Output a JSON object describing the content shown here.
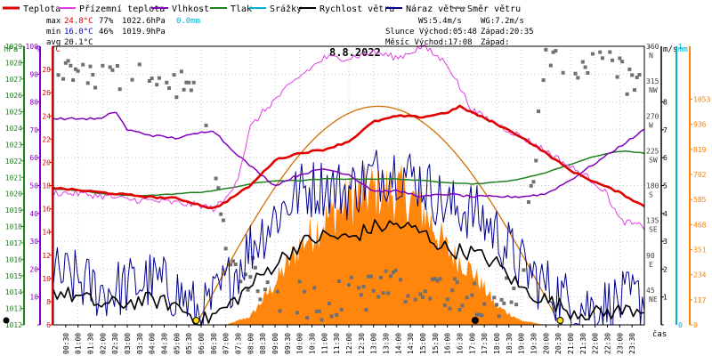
{
  "legend": {
    "items": [
      {
        "label": "Teplota",
        "color": "#e00000"
      },
      {
        "label": "Přízemní teplota",
        "color": "#e040e0"
      },
      {
        "label": "Vlhkost",
        "color": "#8000c0"
      },
      {
        "label": "Tlak",
        "color": "#208020"
      },
      {
        "label": "Srážky",
        "color": "#00b0d0"
      },
      {
        "label": "Rychlost větru",
        "color": "#000000"
      },
      {
        "label": "Náraz větru",
        "color": "#000090"
      },
      {
        "label": "Směr větru",
        "color": "#808080"
      }
    ]
  },
  "stats": {
    "max_label": "max",
    "max_temp": "24.8°C",
    "max_hum": "77%",
    "max_press": "1022.6hPa",
    "max_rain": "0.0mm",
    "min_label": "min",
    "min_temp": "16.0°C",
    "min_hum": "46%",
    "min_press": "1019.9hPa",
    "avg_label": "avg",
    "avg_temp": "20.1°C"
  },
  "wind_info": {
    "ws": "WS:5.4m/s",
    "wg": "WG:7.2m/s",
    "sun": "Slunce Východ:05:48",
    "sun_set": "Západ:20:35",
    "moon": "Měsíc Východ:17:08",
    "moon_set": "Západ:"
  },
  "colors": {
    "temp": "#e00000",
    "ground": "#e040e0",
    "hum": "#8000c0",
    "press": "#208020",
    "rain": "#00b0d0",
    "wind": "#000000",
    "gust": "#000090",
    "dir": "#707070",
    "solar": "#ff8000",
    "solar_max": "#d07000"
  },
  "chart_data": {
    "type": "line",
    "title": "8.8.2022",
    "xlabel": "čas",
    "x_ticks": [
      "00:30",
      "01:00",
      "01:30",
      "02:00",
      "02:30",
      "03:00",
      "03:30",
      "04:00",
      "04:30",
      "05:00",
      "05:30",
      "06:00",
      "06:30",
      "07:00",
      "07:30",
      "08:00",
      "08:30",
      "09:00",
      "09:30",
      "10:00",
      "10:30",
      "11:00",
      "11:30",
      "12:00",
      "12:30",
      "13:00",
      "13:30",
      "14:00",
      "14:30",
      "15:00",
      "15:30",
      "16:00",
      "16:30",
      "17:00",
      "17:30",
      "18:00",
      "18:30",
      "19:00",
      "19:30",
      "20:00",
      "20:30",
      "21:00",
      "21:30",
      "22:00",
      "22:30",
      "23:00",
      "23:30"
    ],
    "axes": {
      "pressure": {
        "unit": "hPa",
        "min": 1012,
        "max": 1029,
        "ticks": [
          1012,
          1013,
          1014,
          1015,
          1016,
          1017,
          1018,
          1019,
          1020,
          1021,
          1022,
          1023,
          1024,
          1025,
          1026,
          1027,
          1028,
          1029
        ]
      },
      "humidity": {
        "unit": "%",
        "min": 0,
        "max": 100,
        "ticks": [
          0,
          10,
          20,
          30,
          40,
          50,
          60,
          70,
          80,
          90,
          100
        ]
      },
      "temperature": {
        "unit": "°C",
        "min": 6,
        "max": 30,
        "ticks": [
          6,
          8,
          10,
          12,
          14,
          16,
          18,
          20,
          22,
          24,
          26,
          28
        ]
      },
      "wind_dir": {
        "unit": "°",
        "min": 0,
        "max": 360,
        "ticks": [
          {
            "v": 360,
            "l": "N"
          },
          {
            "v": 315,
            "l": "NW"
          },
          {
            "v": 270,
            "l": "W"
          },
          {
            "v": 225,
            "l": "SW"
          },
          {
            "v": 180,
            "l": "S"
          },
          {
            "v": 135,
            "l": "SE"
          },
          {
            "v": 90,
            "l": "E"
          },
          {
            "v": 45,
            "l": "NE"
          },
          {
            "v": 0,
            "l": ""
          }
        ]
      },
      "wind_speed": {
        "unit": "m/s",
        "min": 0,
        "max": 10,
        "ticks": [
          0,
          1,
          2,
          3,
          4,
          5,
          6,
          7,
          8
        ]
      },
      "rain": {
        "unit": "mm",
        "min": 0,
        "max": 1,
        "ticks": [
          0,
          1
        ]
      },
      "solar": {
        "unit": "",
        "min": 0,
        "max": 1300,
        "ticks": [
          0,
          117,
          234,
          351,
          468,
          585,
          702,
          819,
          936,
          1053
        ]
      }
    },
    "series": [
      {
        "name": "Teplota",
        "axis": "temperature",
        "hours": [
          0,
          1,
          2,
          3,
          4,
          5,
          6,
          6.5,
          7,
          8,
          9,
          10,
          11,
          12,
          13,
          14,
          15,
          16,
          16.5,
          17,
          18,
          19,
          20,
          21,
          22,
          23,
          24
        ],
        "values": [
          17.8,
          17.6,
          17.4,
          17.2,
          17.0,
          16.9,
          16.3,
          16.0,
          16.6,
          18.0,
          20.2,
          20.8,
          21.1,
          21.8,
          23.5,
          24.0,
          23.9,
          24.3,
          24.8,
          24.3,
          23.3,
          22.2,
          20.8,
          19.3,
          18.3,
          17.4,
          16.2
        ]
      },
      {
        "name": "Přízemní teplota",
        "axis": "temperature",
        "hours": [
          0,
          1,
          2,
          3,
          4,
          5,
          6,
          6.5,
          7,
          7.5,
          8,
          8.5,
          9,
          10,
          11,
          12,
          13,
          14,
          15,
          16,
          16.5,
          17,
          18,
          19,
          20,
          21,
          22,
          22.5,
          23,
          24
        ],
        "values": [
          17.4,
          17.3,
          17.1,
          16.8,
          16.7,
          16.5,
          16.3,
          16.0,
          16.8,
          18.8,
          23.0,
          24.3,
          25.4,
          27.4,
          29.0,
          29.0,
          29.5,
          29.0,
          30.0,
          28.5,
          26.5,
          24.5,
          23.3,
          22.2,
          21.0,
          19.6,
          18.3,
          17.2,
          15.0,
          14.4
        ]
      },
      {
        "name": "Vlhkost",
        "axis": "humidity",
        "hours": [
          0,
          1,
          2,
          2.5,
          3,
          4,
          5,
          6,
          6.5,
          7,
          8,
          9,
          10,
          11,
          12,
          13,
          14,
          15,
          16,
          17,
          18,
          19,
          20,
          21,
          22,
          23,
          24
        ],
        "values": [
          74,
          74,
          74,
          77,
          70,
          68,
          67,
          69,
          70,
          65,
          57,
          50,
          54,
          56,
          54,
          48,
          48,
          46,
          47,
          46,
          46,
          46,
          47,
          52,
          58,
          64,
          70
        ]
      },
      {
        "name": "Tlak",
        "axis": "pressure",
        "hours": [
          0,
          1,
          2,
          3,
          4,
          5,
          6,
          7,
          8,
          9,
          10,
          11,
          12,
          13,
          14,
          15,
          16,
          17,
          18,
          19,
          20,
          21,
          22,
          23,
          24
        ],
        "values": [
          1020.3,
          1020.2,
          1020.0,
          1019.9,
          1019.9,
          1020.0,
          1020.1,
          1020.3,
          1020.6,
          1020.8,
          1020.8,
          1020.9,
          1020.9,
          1020.9,
          1020.9,
          1020.8,
          1020.7,
          1020.6,
          1020.7,
          1020.9,
          1021.3,
          1021.8,
          1022.3,
          1022.6,
          1022.5
        ]
      },
      {
        "name": "Rychlost větru",
        "axis": "wind_speed",
        "hours": [
          0,
          1,
          2,
          3,
          4,
          5,
          6,
          7,
          8,
          9,
          10,
          11,
          12,
          13,
          14,
          15,
          16,
          17,
          18,
          19,
          20,
          21,
          22,
          23,
          24
        ],
        "values": [
          1.2,
          1.0,
          0.7,
          0.8,
          0.9,
          0.7,
          0.1,
          0.6,
          1.4,
          2.2,
          2.9,
          3.2,
          3.1,
          3.5,
          3.6,
          3.3,
          2.7,
          2.6,
          2.2,
          1.3,
          0.9,
          0.5,
          0.4,
          0.5,
          0.6
        ]
      },
      {
        "name": "Náraz větru",
        "axis": "wind_speed",
        "hours": [
          0,
          1,
          2,
          3,
          4,
          5,
          6,
          7,
          8,
          9,
          10,
          11,
          12,
          13,
          14,
          15,
          16,
          17,
          18,
          19,
          20,
          21,
          22,
          23,
          24
        ],
        "values": [
          1.8,
          1.6,
          1.2,
          1.4,
          1.6,
          1.2,
          0.3,
          1.4,
          2.8,
          3.9,
          4.8,
          5.0,
          4.8,
          5.4,
          5.6,
          5.1,
          4.2,
          4.1,
          3.3,
          2.1,
          1.4,
          0.8,
          0.6,
          0.8,
          1.0
        ]
      },
      {
        "name": "Směr větru",
        "axis": "wind_dir",
        "hours": [
          0,
          2,
          4,
          6,
          7,
          9,
          11,
          13,
          15,
          17,
          18,
          19,
          20,
          21,
          22,
          23,
          24
        ],
        "values": [
          330,
          320,
          315,
          300,
          90,
          40,
          30,
          45,
          50,
          40,
          30,
          55,
          350,
          330,
          340,
          320,
          310
        ]
      }
    ],
    "solar": {
      "axis": "solar",
      "hours": [
        7,
        8,
        9,
        10,
        11,
        12,
        13,
        14,
        15,
        16,
        17,
        18,
        19,
        20
      ],
      "values": [
        0,
        40,
        200,
        380,
        500,
        600,
        650,
        640,
        560,
        360,
        260,
        90,
        20,
        0
      ]
    },
    "solar_max_curve": {
      "sunrise": 5.8,
      "sunset": 20.58,
      "peak": 1020
    },
    "markers": {
      "sunrise_hour": 5.8,
      "sunset_hour": 20.58,
      "moonrise_hour": 17.13,
      "start_hour": 0
    }
  }
}
